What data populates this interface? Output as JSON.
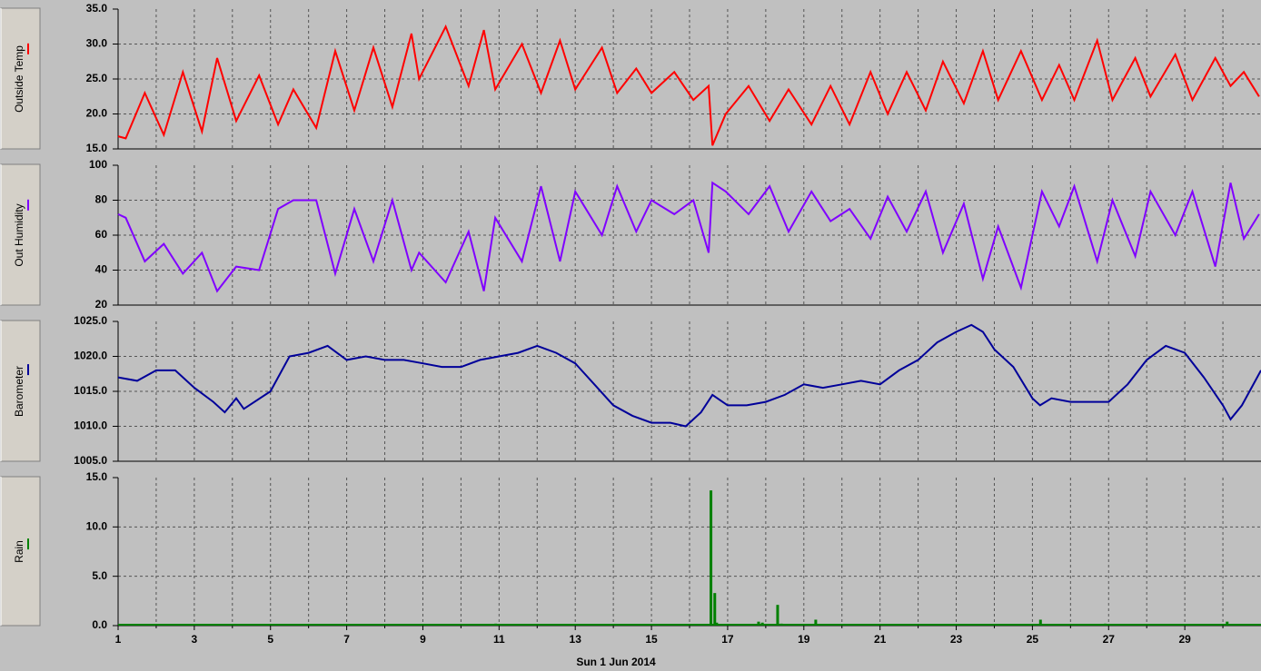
{
  "chart_data": [
    {
      "type": "line",
      "ylabel": "Outside Temp",
      "color": "#ff0000",
      "x": [
        1,
        1.2,
        1.7,
        2.2,
        2.7,
        3.2,
        3.6,
        4.1,
        4.7,
        5.2,
        5.6,
        6.2,
        6.7,
        7.2,
        7.7,
        8.2,
        8.7,
        8.9,
        9.6,
        10.2,
        10.6,
        10.9,
        11.6,
        12.1,
        12.6,
        13.0,
        13.7,
        14.1,
        14.6,
        15.0,
        15.6,
        16.1,
        16.5,
        16.6,
        16.95,
        17.55,
        18.1,
        18.6,
        19.2,
        19.7,
        20.2,
        20.75,
        21.2,
        21.7,
        22.2,
        22.65,
        23.2,
        23.7,
        24.1,
        24.7,
        25.25,
        25.7,
        26.1,
        26.7,
        27.1,
        27.7,
        28.1,
        28.75,
        29.2,
        29.8,
        30.2,
        30.55,
        30.95
      ],
      "values": [
        16.8,
        16.5,
        23,
        17,
        26,
        17.5,
        28,
        19,
        25.5,
        18.5,
        23.5,
        18,
        29,
        20.5,
        29.5,
        21,
        31.5,
        25,
        32.5,
        24,
        32,
        23.5,
        30,
        23,
        30.5,
        23.5,
        29.5,
        23,
        26.5,
        23,
        26,
        22,
        24,
        15.5,
        20,
        24,
        19,
        23.5,
        18.5,
        24,
        18.5,
        26,
        20,
        26,
        20.5,
        27.5,
        21.5,
        29,
        22,
        29,
        22,
        27,
        22,
        30.5,
        22,
        28,
        22.5,
        28.5,
        22,
        28,
        24,
        26,
        22.5
      ],
      "ylim": [
        15,
        35
      ],
      "yticks": [
        {
          "value": 15,
          "label": "15.0"
        },
        {
          "value": 20,
          "label": "20.0"
        },
        {
          "value": 25,
          "label": "25.0"
        },
        {
          "value": 30,
          "label": "30.0"
        },
        {
          "value": 35,
          "label": "35.0"
        }
      ]
    },
    {
      "type": "line",
      "ylabel": "Out Humidity",
      "color": "#8000ff",
      "x": [
        1,
        1.2,
        1.7,
        2.2,
        2.7,
        3.2,
        3.6,
        4.1,
        4.7,
        5.2,
        5.6,
        6.2,
        6.7,
        7.2,
        7.7,
        8.2,
        8.7,
        8.9,
        9.6,
        10.2,
        10.6,
        10.9,
        11.6,
        12.1,
        12.6,
        13.0,
        13.7,
        14.1,
        14.6,
        15.0,
        15.6,
        16.1,
        16.5,
        16.6,
        16.95,
        17.55,
        18.1,
        18.6,
        19.2,
        19.7,
        20.2,
        20.75,
        21.2,
        21.7,
        22.2,
        22.65,
        23.2,
        23.7,
        24.1,
        24.7,
        25.25,
        25.7,
        26.1,
        26.7,
        27.1,
        27.7,
        28.1,
        28.75,
        29.2,
        29.8,
        30.2,
        30.55,
        30.95
      ],
      "values": [
        72,
        70,
        45,
        55,
        38,
        50,
        28,
        42,
        40,
        75,
        80,
        80,
        38,
        75,
        45,
        80,
        40,
        50,
        33,
        62,
        28,
        70,
        45,
        88,
        45,
        85,
        60,
        88,
        62,
        80,
        72,
        80,
        50,
        90,
        85,
        72,
        88,
        62,
        85,
        68,
        75,
        58,
        82,
        62,
        85,
        50,
        78,
        35,
        65,
        30,
        85,
        65,
        88,
        45,
        80,
        48,
        85,
        60,
        85,
        42,
        90,
        58,
        72
      ],
      "ylim": [
        20,
        100
      ],
      "yticks": [
        20,
        40,
        60,
        80,
        100
      ]
    },
    {
      "type": "line",
      "ylabel": "Barometer",
      "color": "#000099",
      "x": [
        1,
        1.5,
        2,
        2.5,
        3,
        3.5,
        3.8,
        4.1,
        4.3,
        5,
        5.5,
        6,
        6.5,
        7,
        7.5,
        8,
        8.5,
        9,
        9.5,
        10,
        10.5,
        11,
        11.5,
        12,
        12.5,
        13,
        13.5,
        14,
        14.5,
        15,
        15.5,
        15.9,
        16.3,
        16.6,
        17,
        17.5,
        18,
        18.5,
        19,
        19.5,
        20,
        20.5,
        21,
        21.5,
        22,
        22.5,
        23,
        23.4,
        23.7,
        24,
        24.5,
        25,
        25.2,
        25.5,
        26,
        26.5,
        27,
        27.5,
        28,
        28.5,
        29,
        29.5,
        30,
        30.2,
        30.5,
        31
      ],
      "values": [
        1017,
        1016.5,
        1018,
        1018,
        1015.5,
        1013.5,
        1012,
        1014,
        1012.5,
        1015,
        1020,
        1020.5,
        1021.5,
        1019.5,
        1020,
        1019.5,
        1019.5,
        1019,
        1018.5,
        1018.5,
        1019.5,
        1020,
        1020.5,
        1021.5,
        1020.5,
        1019,
        1016,
        1013,
        1011.5,
        1010.5,
        1010.5,
        1010,
        1012,
        1014.5,
        1013,
        1013,
        1013.5,
        1014.5,
        1016,
        1015.5,
        1016,
        1016.5,
        1016,
        1018,
        1019.5,
        1022,
        1023.5,
        1024.5,
        1023.5,
        1021,
        1018.5,
        1014,
        1013,
        1014,
        1013.5,
        1013.5,
        1013.5,
        1016,
        1019.5,
        1021.5,
        1020.5,
        1017,
        1013,
        1011,
        1013,
        1018
      ],
      "ylim": [
        1005,
        1025
      ],
      "yticks": [
        {
          "value": 1005,
          "label": "1005.0"
        },
        {
          "value": 1010,
          "label": "1010.0"
        },
        {
          "value": 1015,
          "label": "1015.0"
        },
        {
          "value": 1020,
          "label": "1020.0"
        },
        {
          "value": 1025,
          "label": "1025.0"
        }
      ]
    },
    {
      "type": "bar",
      "ylabel": "Rain",
      "color": "#008000",
      "xlabel": "Sun 1 Jun 2014",
      "x": [
        10.9,
        16.55,
        16.65,
        16.7,
        17.8,
        17.9,
        18.3,
        18.4,
        19.3,
        25.2,
        26.9,
        30.1
      ],
      "values": [
        0.2,
        13.7,
        3.3,
        0.3,
        0.4,
        0.3,
        2.1,
        0.2,
        0.6,
        0.6,
        0.2,
        0.4
      ],
      "ylim": [
        0,
        15
      ],
      "yticks": [
        {
          "value": 0,
          "label": "0.0"
        },
        {
          "value": 5,
          "label": "5.0"
        },
        {
          "value": 10,
          "label": "10.0"
        },
        {
          "value": 15,
          "label": "15.0"
        }
      ],
      "xlim": [
        1,
        31
      ],
      "xticks": [
        1,
        3,
        5,
        7,
        9,
        11,
        13,
        15,
        17,
        19,
        21,
        23,
        25,
        27,
        29
      ],
      "xminorticks": [
        2,
        4,
        6,
        8,
        10,
        12,
        14,
        16,
        18,
        20,
        22,
        24,
        26,
        28,
        30
      ]
    }
  ]
}
